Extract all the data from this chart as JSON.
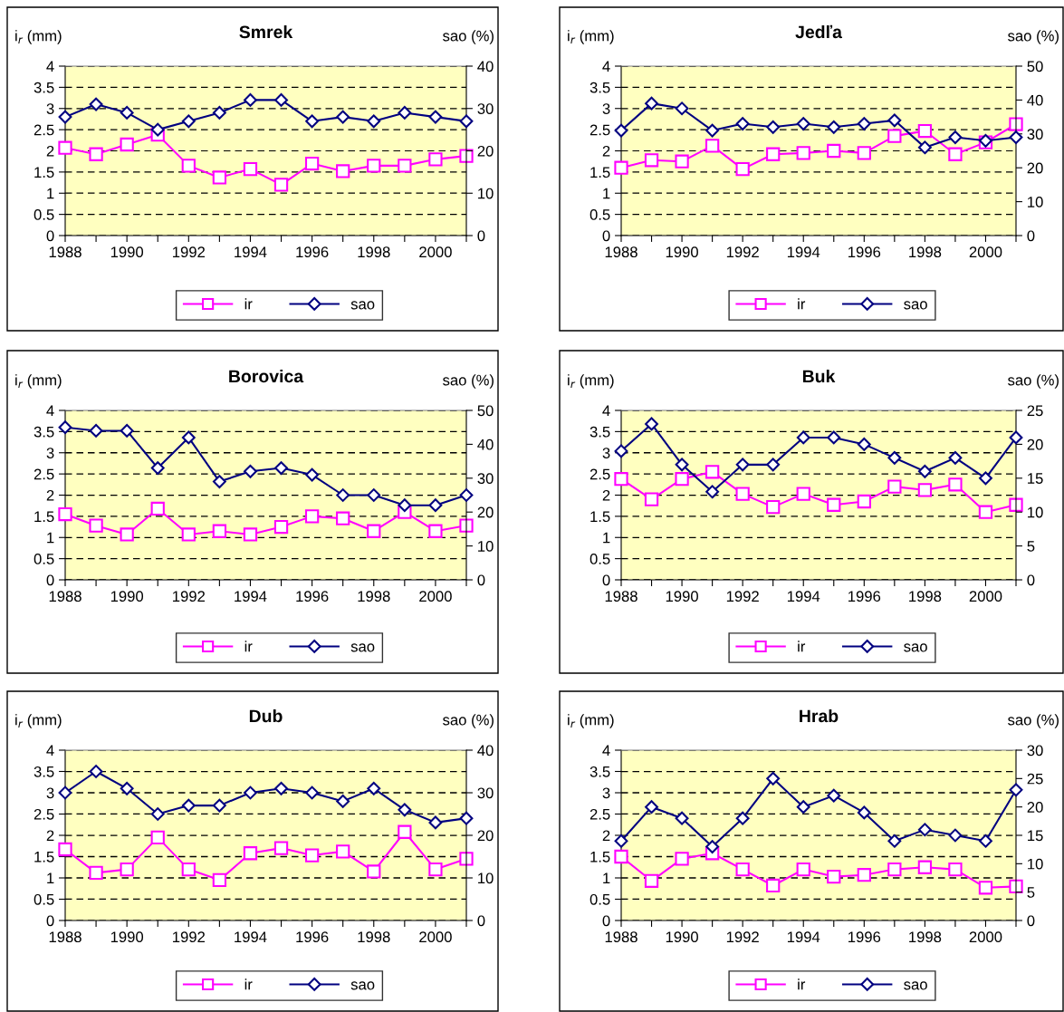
{
  "chart_data": [
    {
      "type": "line",
      "title": "Smrek",
      "ylabel": "i$_{r}$ (mm)",
      "y2label": "sao (%)",
      "x": [
        1988,
        1989,
        1990,
        1991,
        1992,
        1993,
        1994,
        1995,
        1996,
        1997,
        1998,
        1999,
        2000,
        2001
      ],
      "xlim": [
        1988,
        2001
      ],
      "xticks": [
        1988,
        {
          "value": 1989,
          "label": null
        },
        1990,
        {
          "value": 1991,
          "label": null
        },
        1992,
        {
          "value": 1993,
          "label": null
        },
        1994,
        {
          "value": 1995,
          "label": null
        },
        1996,
        {
          "value": 1997,
          "label": null
        },
        1998,
        {
          "value": 1999,
          "label": null
        },
        2000,
        {
          "value": 2001,
          "label": null
        }
      ],
      "ylim": [
        0,
        4
      ],
      "yticks": [
        0,
        0.5,
        1,
        1.5,
        2,
        2.5,
        3,
        3.5,
        4
      ],
      "y2lim": [
        0,
        40
      ],
      "y2ticks": [
        0,
        10,
        20,
        30,
        40
      ],
      "grid": "y",
      "legend": "bottom",
      "line_style": "solid",
      "series": [
        {
          "name": "ir",
          "color": "#ff00ff",
          "marker": "square",
          "values": [
            2.07,
            1.92,
            2.15,
            2.38,
            1.65,
            1.37,
            1.57,
            1.2,
            1.7,
            1.52,
            1.65,
            1.65,
            1.8,
            1.88
          ]
        },
        {
          "name": "sao",
          "color": "#000080",
          "marker": "diamond",
          "axis": "y2",
          "values": [
            28,
            31,
            29,
            25,
            27,
            29,
            32,
            32,
            27,
            28,
            27,
            29,
            28,
            27
          ]
        }
      ]
    },
    {
      "type": "line",
      "title": "Jedľa",
      "ylabel": "i$_{r}$ (mm)",
      "y2label": "sao (%)",
      "x": [
        1988,
        1989,
        1990,
        1991,
        1992,
        1993,
        1994,
        1995,
        1996,
        1997,
        1998,
        1999,
        2000,
        2001
      ],
      "xlim": [
        1988,
        2001
      ],
      "xticks": [
        1988,
        {
          "value": 1989,
          "label": null
        },
        1990,
        {
          "value": 1991,
          "label": null
        },
        1992,
        {
          "value": 1993,
          "label": null
        },
        1994,
        {
          "value": 1995,
          "label": null
        },
        1996,
        {
          "value": 1997,
          "label": null
        },
        1998,
        {
          "value": 1999,
          "label": null
        },
        2000,
        {
          "value": 2001,
          "label": null
        }
      ],
      "ylim": [
        0,
        4
      ],
      "yticks": [
        0,
        0.5,
        1,
        1.5,
        2,
        2.5,
        3,
        3.5,
        4
      ],
      "y2lim": [
        0,
        50
      ],
      "y2ticks": [
        0,
        10,
        20,
        30,
        40,
        50
      ],
      "grid": "y",
      "legend": "bottom",
      "line_style": "solid",
      "series": [
        {
          "name": "ir",
          "color": "#ff00ff",
          "marker": "square",
          "values": [
            1.6,
            1.78,
            1.75,
            2.12,
            1.57,
            1.92,
            1.95,
            2.0,
            1.95,
            2.35,
            2.47,
            1.92,
            2.2,
            2.63
          ]
        },
        {
          "name": "sao",
          "color": "#000080",
          "marker": "diamond",
          "axis": "y2",
          "values": [
            31,
            39,
            37.5,
            31,
            33,
            32,
            33,
            32,
            33,
            34,
            26,
            29,
            28,
            29
          ]
        }
      ]
    },
    {
      "type": "line",
      "title": "Borovica",
      "ylabel": "i$_{r}$ (mm)",
      "y2label": "sao (%)",
      "x": [
        1988,
        1989,
        1990,
        1991,
        1992,
        1993,
        1994,
        1995,
        1996,
        1997,
        1998,
        1999,
        2000,
        2001
      ],
      "xlim": [
        1988,
        2001
      ],
      "xticks": [
        1988,
        {
          "value": 1989,
          "label": null
        },
        1990,
        {
          "value": 1991,
          "label": null
        },
        1992,
        {
          "value": 1993,
          "label": null
        },
        1994,
        {
          "value": 1995,
          "label": null
        },
        1996,
        {
          "value": 1997,
          "label": null
        },
        1998,
        {
          "value": 1999,
          "label": null
        },
        2000,
        {
          "value": 2001,
          "label": null
        }
      ],
      "ylim": [
        0,
        4
      ],
      "yticks": [
        0,
        0.5,
        1,
        1.5,
        2,
        2.5,
        3,
        3.5,
        4
      ],
      "y2lim": [
        0,
        50
      ],
      "y2ticks": [
        0,
        10,
        20,
        30,
        40,
        50
      ],
      "grid": "y",
      "legend": "bottom",
      "line_style": "solid",
      "series": [
        {
          "name": "ir",
          "color": "#ff00ff",
          "marker": "square",
          "values": [
            1.55,
            1.28,
            1.07,
            1.68,
            1.07,
            1.15,
            1.07,
            1.25,
            1.5,
            1.45,
            1.15,
            1.6,
            1.15,
            1.28
          ]
        },
        {
          "name": "sao",
          "color": "#000080",
          "marker": "diamond",
          "axis": "y2",
          "values": [
            45,
            44,
            44,
            33,
            42,
            29,
            32,
            33,
            31,
            25,
            25,
            22,
            22,
            25
          ]
        }
      ]
    },
    {
      "type": "line",
      "title": "Buk",
      "ylabel": "i$_{r}$ (mm)",
      "y2label": "sao (%)",
      "x": [
        1988,
        1989,
        1990,
        1991,
        1992,
        1993,
        1994,
        1995,
        1996,
        1997,
        1998,
        1999,
        2000,
        2001
      ],
      "xlim": [
        1988,
        2001
      ],
      "xticks": [
        1988,
        {
          "value": 1989,
          "label": null
        },
        1990,
        {
          "value": 1991,
          "label": null
        },
        1992,
        {
          "value": 1993,
          "label": null
        },
        1994,
        {
          "value": 1995,
          "label": null
        },
        1996,
        {
          "value": 1997,
          "label": null
        },
        1998,
        {
          "value": 1999,
          "label": null
        },
        2000,
        {
          "value": 2001,
          "label": null
        }
      ],
      "ylim": [
        0,
        4
      ],
      "yticks": [
        0,
        0.5,
        1,
        1.5,
        2,
        2.5,
        3,
        3.5,
        4
      ],
      "y2lim": [
        0,
        25
      ],
      "y2ticks": [
        0,
        5,
        10,
        15,
        20,
        25
      ],
      "grid": "y",
      "legend": "bottom",
      "line_style": "solid",
      "series": [
        {
          "name": "ir",
          "color": "#ff00ff",
          "marker": "square",
          "values": [
            2.38,
            1.9,
            2.38,
            2.55,
            2.03,
            1.72,
            2.03,
            1.77,
            1.85,
            2.2,
            2.12,
            2.25,
            1.6,
            1.77
          ]
        },
        {
          "name": "sao",
          "color": "#000080",
          "marker": "diamond",
          "axis": "y2",
          "values": [
            19,
            23,
            17,
            13,
            17,
            17,
            21,
            21,
            20,
            18,
            16,
            18,
            15,
            21
          ]
        }
      ]
    },
    {
      "type": "line",
      "title": "Dub",
      "ylabel": "i$_{r}$ (mm)",
      "y2label": "sao (%)",
      "x": [
        1988,
        1989,
        1990,
        1991,
        1992,
        1993,
        1994,
        1995,
        1996,
        1997,
        1998,
        1999,
        2000,
        2001
      ],
      "xlim": [
        1988,
        2001
      ],
      "xticks": [
        1988,
        {
          "value": 1989,
          "label": null
        },
        1990,
        {
          "value": 1991,
          "label": null
        },
        1992,
        {
          "value": 1993,
          "label": null
        },
        1994,
        {
          "value": 1995,
          "label": null
        },
        1996,
        {
          "value": 1997,
          "label": null
        },
        1998,
        {
          "value": 1999,
          "label": null
        },
        2000,
        {
          "value": 2001,
          "label": null
        }
      ],
      "ylim": [
        0,
        4
      ],
      "yticks": [
        0,
        0.5,
        1,
        1.5,
        2,
        2.5,
        3,
        3.5,
        4
      ],
      "y2lim": [
        0,
        40
      ],
      "y2ticks": [
        0,
        10,
        20,
        30,
        40
      ],
      "grid": "y",
      "legend": "bottom",
      "line_style": "solid",
      "series": [
        {
          "name": "ir",
          "color": "#ff00ff",
          "marker": "square",
          "values": [
            1.67,
            1.12,
            1.2,
            1.95,
            1.2,
            0.95,
            1.58,
            1.7,
            1.53,
            1.62,
            1.15,
            2.08,
            1.2,
            1.45
          ]
        },
        {
          "name": "sao",
          "color": "#000080",
          "marker": "diamond",
          "axis": "y2",
          "values": [
            30,
            35,
            31,
            25,
            27,
            27,
            30,
            31,
            30,
            28,
            31,
            26,
            23,
            24
          ]
        }
      ]
    },
    {
      "type": "line",
      "title": "Hrab",
      "ylabel": "i$_{r}$ (mm)",
      "y2label": "sao (%)",
      "x": [
        1988,
        1989,
        1990,
        1991,
        1992,
        1993,
        1994,
        1995,
        1996,
        1997,
        1998,
        1999,
        2000,
        2001
      ],
      "xlim": [
        1988,
        2001
      ],
      "xticks": [
        1988,
        {
          "value": 1989,
          "label": null
        },
        1990,
        {
          "value": 1991,
          "label": null
        },
        1992,
        {
          "value": 1993,
          "label": null
        },
        1994,
        {
          "value": 1995,
          "label": null
        },
        1996,
        {
          "value": 1997,
          "label": null
        },
        1998,
        {
          "value": 1999,
          "label": null
        },
        2000,
        {
          "value": 2001,
          "label": null
        }
      ],
      "ylim": [
        0,
        4
      ],
      "yticks": [
        0,
        0.5,
        1,
        1.5,
        2,
        2.5,
        3,
        3.5,
        4
      ],
      "y2lim": [
        0,
        30
      ],
      "y2ticks": [
        0,
        5,
        10,
        15,
        20,
        25,
        30
      ],
      "grid": "y",
      "legend": "bottom",
      "line_style": "solid",
      "series": [
        {
          "name": "ir",
          "color": "#ff00ff",
          "marker": "square",
          "values": [
            1.5,
            0.93,
            1.45,
            1.58,
            1.2,
            0.82,
            1.2,
            1.03,
            1.07,
            1.2,
            1.25,
            1.2,
            0.77,
            0.8
          ]
        },
        {
          "name": "sao",
          "color": "#000080",
          "marker": "diamond",
          "axis": "y2",
          "values": [
            14,
            20,
            18,
            13,
            18,
            25,
            20,
            22,
            19,
            14,
            16,
            15,
            14,
            23
          ]
        }
      ]
    }
  ]
}
